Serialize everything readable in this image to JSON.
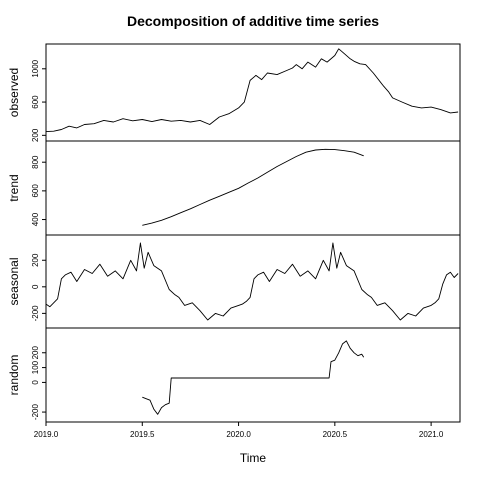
{
  "chart_data": {
    "type": "line",
    "title": "Decomposition of additive time series",
    "xlabel": "Time",
    "xlim": [
      2019.0,
      2021.15
    ],
    "x_ticks": [
      "2019.0",
      "2019.5",
      "2020.0",
      "2020.5",
      "2021.0"
    ],
    "panels": [
      {
        "name": "observed",
        "ylabel": "observed",
        "ylim": [
          180,
          1250
        ],
        "y_ticks": [
          "200",
          "600",
          "1000"
        ],
        "x": [
          2019.0,
          2019.04,
          2019.08,
          2019.12,
          2019.16,
          2019.2,
          2019.25,
          2019.3,
          2019.35,
          2019.4,
          2019.45,
          2019.5,
          2019.55,
          2019.6,
          2019.65,
          2019.7,
          2019.75,
          2019.8,
          2019.85,
          2019.9,
          2019.95,
          2020.0,
          2020.03,
          2020.06,
          2020.09,
          2020.12,
          2020.15,
          2020.2,
          2020.25,
          2020.28,
          2020.3,
          2020.33,
          2020.36,
          2020.4,
          2020.43,
          2020.46,
          2020.5,
          2020.52,
          2020.55,
          2020.58,
          2020.6,
          2020.63,
          2020.66,
          2020.7,
          2020.75,
          2020.78,
          2020.8,
          2020.85,
          2020.9,
          2020.95,
          2021.0,
          2021.05,
          2021.1,
          2021.14
        ],
        "values": [
          245,
          250,
          270,
          310,
          290,
          330,
          340,
          380,
          360,
          400,
          375,
          390,
          365,
          390,
          370,
          380,
          360,
          380,
          330,
          420,
          460,
          530,
          600,
          860,
          920,
          870,
          950,
          930,
          980,
          1010,
          1050,
          1000,
          1080,
          1020,
          1120,
          1080,
          1160,
          1240,
          1180,
          1120,
          1090,
          1060,
          1050,
          950,
          800,
          720,
          650,
          600,
          550,
          530,
          540,
          510,
          470,
          480
        ]
      },
      {
        "name": "trend",
        "ylabel": "trend",
        "ylim": [
          320,
          920
        ],
        "y_ticks": [
          "400",
          "600",
          "800"
        ],
        "x": [
          2019.5,
          2019.55,
          2019.6,
          2019.65,
          2019.7,
          2019.75,
          2019.8,
          2019.85,
          2019.9,
          2019.95,
          2020.0,
          2020.05,
          2020.1,
          2020.15,
          2020.2,
          2020.25,
          2020.3,
          2020.35,
          2020.4,
          2020.45,
          2020.5,
          2020.55,
          2020.6,
          2020.65
        ],
        "values": [
          360,
          375,
          395,
          420,
          448,
          475,
          505,
          535,
          562,
          590,
          618,
          655,
          690,
          730,
          770,
          805,
          840,
          870,
          885,
          890,
          888,
          880,
          870,
          845
        ]
      },
      {
        "name": "seasonal",
        "ylabel": "seasonal",
        "ylim": [
          -280,
          360
        ],
        "y_ticks": [
          "-200",
          "0",
          "200"
        ],
        "x": [
          2019.0,
          2019.02,
          2019.04,
          2019.06,
          2019.08,
          2019.1,
          2019.13,
          2019.16,
          2019.2,
          2019.24,
          2019.28,
          2019.32,
          2019.36,
          2019.4,
          2019.44,
          2019.47,
          2019.49,
          2019.51,
          2019.53,
          2019.56,
          2019.6,
          2019.64,
          2019.67,
          2019.69,
          2019.72,
          2019.76,
          2019.8,
          2019.84,
          2019.88,
          2019.92,
          2019.96,
          2020.0,
          2020.02,
          2020.04,
          2020.06,
          2020.08,
          2020.1,
          2020.13,
          2020.16,
          2020.2,
          2020.24,
          2020.28,
          2020.32,
          2020.36,
          2020.4,
          2020.44,
          2020.47,
          2020.49,
          2020.51,
          2020.53,
          2020.56,
          2020.6,
          2020.64,
          2020.67,
          2020.69,
          2020.72,
          2020.76,
          2020.8,
          2020.84,
          2020.88,
          2020.92,
          2020.96,
          2021.0,
          2021.02,
          2021.04,
          2021.06,
          2021.08,
          2021.1,
          2021.12,
          2021.14
        ],
        "values": [
          -130,
          -150,
          -120,
          -90,
          60,
          90,
          110,
          40,
          130,
          100,
          170,
          80,
          120,
          60,
          200,
          120,
          330,
          140,
          260,
          160,
          120,
          -20,
          -60,
          -80,
          -140,
          -120,
          -180,
          -250,
          -200,
          -220,
          -160,
          -140,
          -130,
          -110,
          -80,
          60,
          90,
          110,
          40,
          130,
          100,
          170,
          80,
          120,
          60,
          200,
          120,
          330,
          140,
          260,
          160,
          120,
          -20,
          -60,
          -80,
          -140,
          -120,
          -180,
          -250,
          -200,
          -220,
          -160,
          -140,
          -120,
          -90,
          20,
          90,
          110,
          70,
          100
        ]
      },
      {
        "name": "random",
        "ylabel": "random",
        "ylim": [
          -240,
          340
        ],
        "y_ticks": [
          "-200",
          "0",
          "100",
          "200"
        ],
        "x": [
          2019.5,
          2019.52,
          2019.54,
          2019.56,
          2019.58,
          2019.6,
          2019.62,
          2019.64,
          2019.65,
          2019.7,
          2019.8,
          2019.9,
          2020.0,
          2020.1,
          2020.2,
          2020.3,
          2020.4,
          2020.47,
          2020.48,
          2020.5,
          2020.52,
          2020.54,
          2020.56,
          2020.58,
          2020.6,
          2020.62,
          2020.64,
          2020.65
        ],
        "values": [
          -100,
          -110,
          -120,
          -180,
          -215,
          -170,
          -150,
          -140,
          30,
          30,
          30,
          30,
          30,
          30,
          30,
          30,
          30,
          30,
          140,
          150,
          200,
          260,
          280,
          230,
          200,
          180,
          190,
          170
        ]
      }
    ]
  }
}
